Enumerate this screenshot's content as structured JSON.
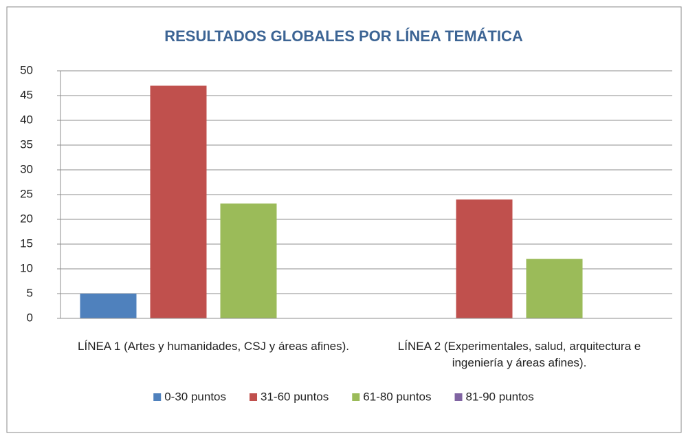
{
  "chart_data": {
    "type": "bar",
    "title": "RESULTADOS GLOBALES POR LÍNEA TEMÁTICA",
    "categories": [
      "LÍNEA 1 (Artes y humanidades, CSJ y áreas afines).",
      "LÍNEA 2 (Experimentales, salud, arquitectura e ingeniería y áreas afines)."
    ],
    "series": [
      {
        "name": "0-30 puntos",
        "color": "#4f81bd",
        "values": [
          5,
          0
        ]
      },
      {
        "name": "31-60 puntos",
        "color": "#c0504d",
        "values": [
          47,
          24
        ]
      },
      {
        "name": "61-80 puntos",
        "color": "#9bbb59",
        "values": [
          23.2,
          12
        ]
      },
      {
        "name": "81-90 puntos",
        "color": "#8064a2",
        "values": [
          0,
          0
        ]
      }
    ],
    "ylim": [
      0,
      50
    ],
    "yticks": [
      0,
      5,
      10,
      15,
      20,
      25,
      30,
      35,
      40,
      45,
      50
    ],
    "grid": true,
    "legend": "bottom"
  }
}
